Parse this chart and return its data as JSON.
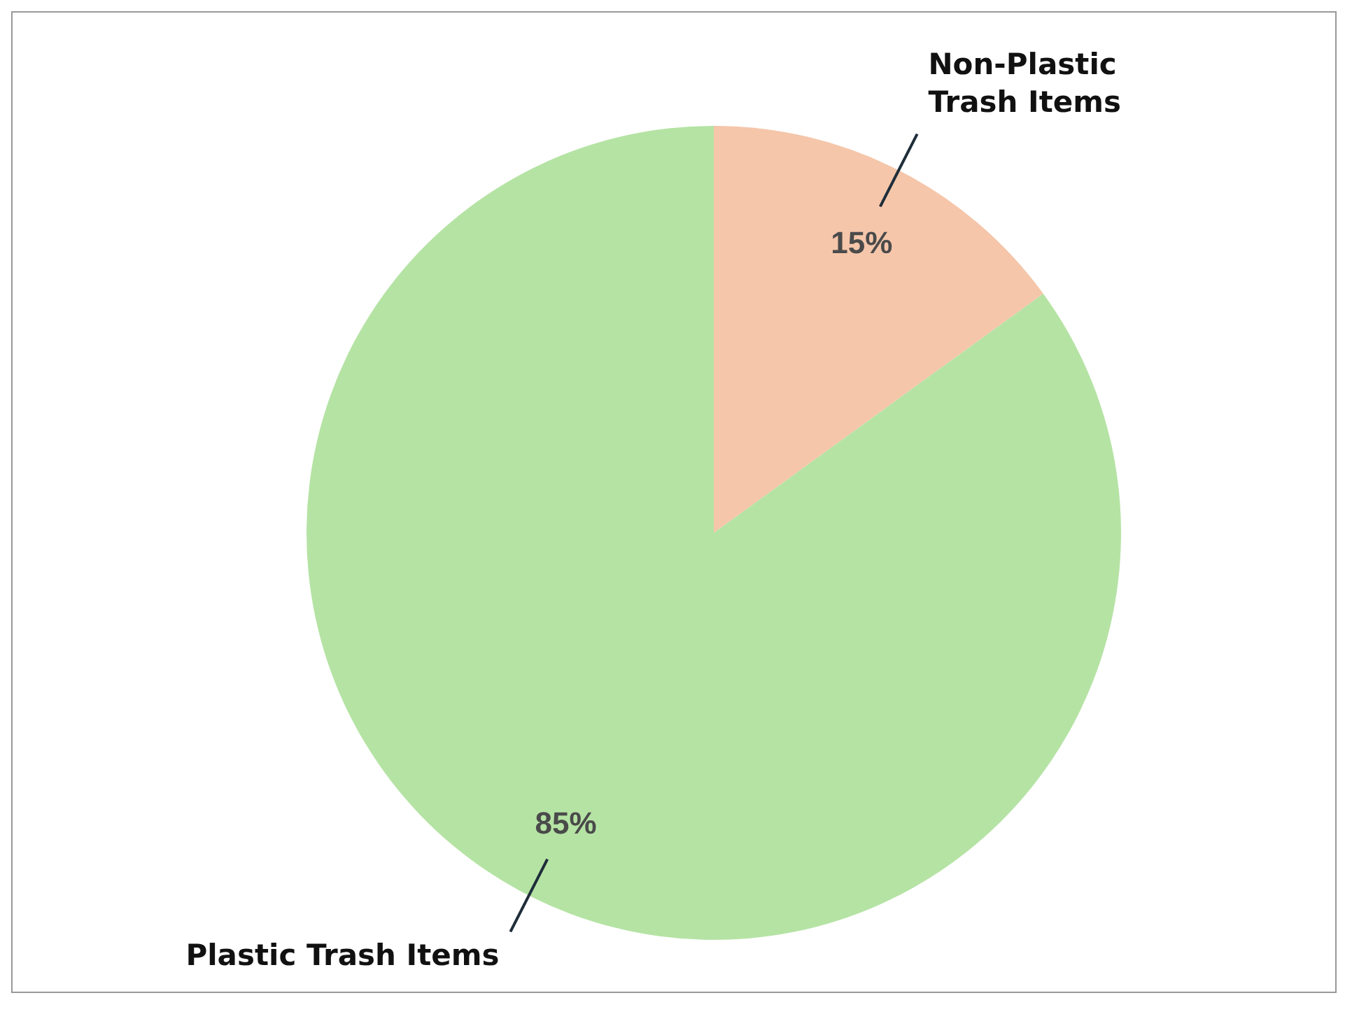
{
  "chart_data": {
    "type": "pie",
    "categories": [
      "Non-Plastic Trash Items",
      "Plastic Trash Items"
    ],
    "values": [
      15,
      85
    ],
    "colors": [
      "#f5c6aa",
      "#b5e3a4"
    ],
    "value_labels": [
      "15%",
      "85%"
    ]
  }
}
